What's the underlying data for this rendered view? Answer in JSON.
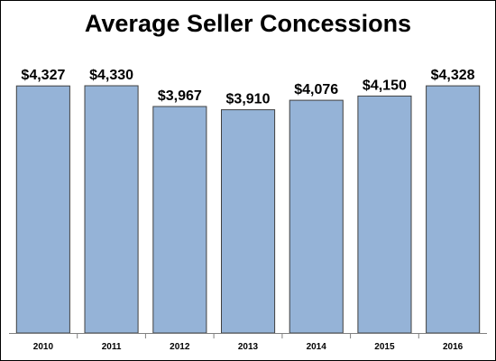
{
  "chart_data": {
    "type": "bar",
    "title": "Average Seller Concessions",
    "categories": [
      "2010",
      "2011",
      "2012",
      "2013",
      "2014",
      "2015",
      "2016"
    ],
    "values": [
      4327,
      4330,
      3967,
      3910,
      4076,
      4150,
      4328
    ],
    "data_labels": [
      "$4,327",
      "$4,330",
      "$3,967",
      "$3,910",
      "$4,076",
      "$4,150",
      "$4,328"
    ],
    "xlabel": "",
    "ylabel": "",
    "ylim": [
      0,
      5000
    ],
    "grid": false,
    "legend": "none",
    "bar_color": "#95B3D7"
  }
}
